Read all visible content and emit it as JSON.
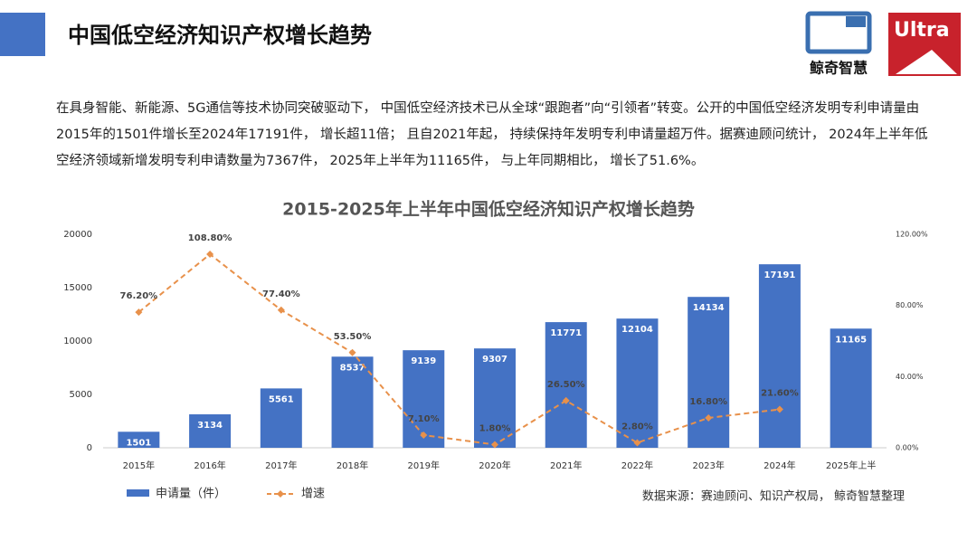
{
  "header": {
    "title": "中国低空经济知识产权增长趋势",
    "paragraph": "在具身智能、新能源、5G通信等技术协同突破驱动下， 中国低空经济技术已从全球“跟跑者”向“引领者”转变。公开的中国低空经济发明专利申请量由2015年的1501件增长至2024年17191件， 增长超11倍； 且自2021年起， 持续保持年发明专利申请量超万件。据赛迪顾问统计， 2024年上半年低空经济领域新增发明专利申请数量为7367件， 2025年上半年为11165件， 与上年同期相比， 增长了51.6%。"
  },
  "logos": {
    "brand": "鲸奇智慧",
    "ultra": "Ultra"
  },
  "chart_data": {
    "type": "bar_line",
    "title": "2015-2025年上半年中国低空经济知识产权增长趋势",
    "categories": [
      "2015年",
      "2016年",
      "2017年",
      "2018年",
      "2019年",
      "2020年",
      "2021年",
      "2022年",
      "2023年",
      "2024年",
      "2025年上半"
    ],
    "series": [
      {
        "name": "申请量（件）",
        "color": "#4472c4",
        "type": "bar",
        "values": [
          1501,
          3134,
          5561,
          8537,
          9139,
          9307,
          11771,
          12104,
          14134,
          17191,
          11165
        ]
      },
      {
        "name": "增速",
        "color": "#e8914b",
        "type": "line",
        "axis": "y2",
        "values": [
          76.2,
          108.8,
          77.4,
          53.5,
          7.1,
          1.8,
          26.5,
          2.8,
          16.8,
          21.6,
          null
        ],
        "value_labels": [
          "76.20%",
          "108.80%",
          "77.40%",
          "53.50%",
          "7.10%",
          "1.80%",
          "26.50%",
          "2.80%",
          "16.80%",
          "21.60%",
          null
        ]
      }
    ],
    "ylim": [
      0,
      20000
    ],
    "yticks": [
      0,
      5000,
      10000,
      15000,
      20000
    ],
    "y2lim": [
      0,
      120
    ],
    "y2ticks": [
      {
        "value": 0,
        "label": "0.00%"
      },
      {
        "value": 40,
        "label": "40.00%"
      },
      {
        "value": 80,
        "label": "80.00%"
      },
      {
        "value": 120,
        "label": "120.00%"
      }
    ],
    "source": "数据来源：赛迪顾问、知识产权局， 鲸奇智慧整理"
  }
}
